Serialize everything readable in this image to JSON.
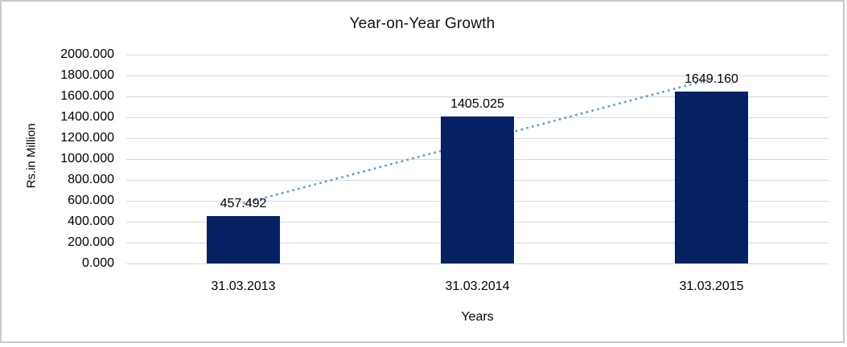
{
  "chart": {
    "title": "Year-on-Year Growth",
    "y_axis_title": "Rs.in Million",
    "x_axis_title": "Years"
  },
  "chart_data": {
    "type": "bar",
    "title": "Year-on-Year Growth",
    "categories": [
      "31.03.2013",
      "31.03.2014",
      "31.03.2015"
    ],
    "values": [
      457.492,
      1405.025,
      1649.16
    ],
    "data_labels": [
      "457.492",
      "1405.025",
      "1649.160"
    ],
    "xlabel": "Years",
    "ylabel": "Rs.in Million",
    "ylim": [
      0,
      2000
    ],
    "ytick_step": 200,
    "ytick_labels": [
      "2000.000",
      "1800.000",
      "1600.000",
      "1400.000",
      "1200.000",
      "1000.000",
      "800.000",
      "600.000",
      "400.000",
      "200.000",
      "0.000"
    ],
    "grid": true,
    "legend": "none",
    "trendline": {
      "type": "linear",
      "style": "dotted"
    },
    "colors": {
      "bar": "#062064",
      "trendline": "#5b9bd5",
      "gridline": "#d9d9d9",
      "frame_border": "#c9c9c9",
      "text": "#000000"
    }
  }
}
